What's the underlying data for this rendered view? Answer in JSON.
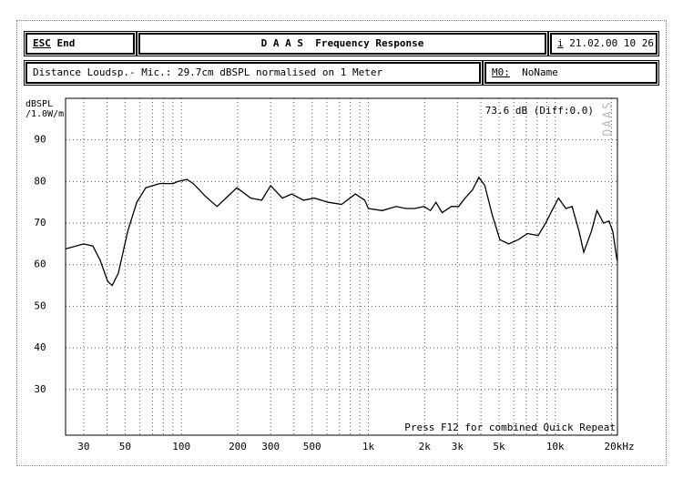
{
  "header": {
    "esc": "ESC",
    "end": "End",
    "title": "D A A S  Frequency Response",
    "info": "i",
    "datetime": "21.02.00 10 26"
  },
  "info_bar": {
    "distance": "Distance Loudsp.- Mic.: 29.7cm dBSPL normalised on 1 Meter",
    "memory": "M0:",
    "name": "NoName"
  },
  "chart_data": {
    "type": "line",
    "ylabel": [
      "dBSPL",
      "/1.0W/m"
    ],
    "color": "#000000",
    "log_x": true,
    "grid": true,
    "annotations": [
      "73.6 dB (Diff:0.0)",
      "Press F12 for combined Quick Repeat"
    ],
    "watermark": "DAAS",
    "xlim": [
      24,
      21500
    ],
    "ylim": [
      19,
      100
    ],
    "xticks": [
      30,
      50,
      100,
      200,
      300,
      500,
      {
        "value": 1000,
        "label": "1k"
      },
      {
        "value": 2000,
        "label": "2k"
      },
      {
        "value": 3000,
        "label": "3k"
      },
      {
        "value": 5000,
        "label": "5k"
      },
      {
        "value": 10000,
        "label": "10k"
      },
      {
        "value": 20000,
        "label": "20kHz"
      }
    ],
    "xgrid": [
      30,
      40,
      50,
      60,
      70,
      80,
      90,
      100,
      200,
      300,
      400,
      500,
      600,
      700,
      800,
      900,
      1000,
      2000,
      3000,
      4000,
      5000,
      6000,
      7000,
      8000,
      9000,
      10000,
      20000
    ],
    "yticks": [
      30,
      40,
      50,
      60,
      70,
      80,
      90
    ],
    "x": [
      24,
      30,
      33.6,
      36.8,
      40.3,
      42.6,
      46,
      51.6,
      57.7,
      64.5,
      76.4,
      90.4,
      95.6,
      107,
      115.7,
      134,
      155,
      173,
      198,
      235,
      269,
      300,
      347,
      389,
      450,
      515,
      610,
      720,
      853,
      956,
      1000,
      1188,
      1410,
      1580,
      1770,
      1982,
      2150,
      2300,
      2480,
      2780,
      3040,
      3290,
      3610,
      3900,
      4200,
      4600,
      5050,
      5640,
      6330,
      7100,
      8100,
      8880,
      9600,
      10400,
      11400,
      12300,
      13400,
      14200,
      15600,
      16700,
      18100,
      19400,
      20300,
      21400
    ],
    "values": [
      63.8,
      65,
      64.5,
      61,
      56,
      55,
      58,
      68,
      75,
      78.5,
      79.5,
      79.5,
      80,
      80.5,
      79.5,
      76.5,
      74,
      76,
      78.5,
      76,
      75.5,
      79,
      76,
      77,
      75.5,
      76,
      75,
      74.5,
      77,
      75.5,
      73.5,
      73,
      74,
      73.5,
      73.5,
      74,
      73,
      75,
      72.5,
      74,
      74,
      76,
      78,
      81,
      79,
      72,
      66,
      65,
      66,
      67.5,
      67,
      70,
      73,
      76,
      73.5,
      74,
      68,
      63,
      68,
      73,
      70,
      70.5,
      68,
      61
    ]
  }
}
